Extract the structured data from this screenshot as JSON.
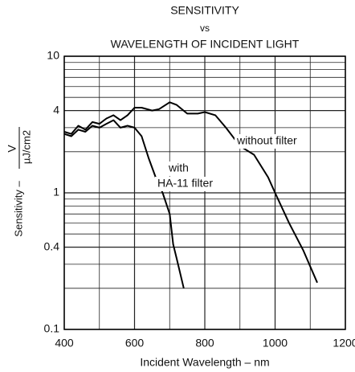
{
  "chart_data": {
    "type": "line",
    "title": [
      "SENSITIVITY",
      "vs",
      "WAVELENGTH OF INCIDENT LIGHT"
    ],
    "xlabel": "Incident Wavelength – nm",
    "ylabel": {
      "text": "Sensitivity –",
      "numerator": "V",
      "denominator": "µJ/cm2"
    },
    "log_y": true,
    "grid": true,
    "xlim": [
      400,
      1200
    ],
    "xticks": [
      400,
      600,
      800,
      1000,
      1200
    ],
    "xminor": [
      500,
      700,
      900,
      1100
    ],
    "ylim": [
      0.1,
      10
    ],
    "yticks": [
      0.1,
      0.4,
      1,
      4,
      10
    ],
    "yminor": [
      0.2,
      0.3,
      0.5,
      0.6,
      0.7,
      0.8,
      0.9,
      2,
      3,
      5,
      6,
      7,
      8,
      9
    ],
    "series": [
      {
        "name": "without filter",
        "color": "#000000",
        "x": [
          400,
          420,
          440,
          460,
          480,
          500,
          520,
          540,
          560,
          580,
          600,
          620,
          650,
          670,
          700,
          720,
          750,
          780,
          800,
          830,
          860,
          900,
          940,
          980,
          1000,
          1040,
          1080,
          1120
        ],
        "values": [
          2.8,
          2.7,
          3.1,
          2.9,
          3.3,
          3.2,
          3.5,
          3.7,
          3.4,
          3.7,
          4.2,
          4.2,
          4.0,
          4.1,
          4.6,
          4.4,
          3.8,
          3.8,
          3.9,
          3.7,
          3.0,
          2.2,
          1.9,
          1.3,
          1.0,
          0.6,
          0.38,
          0.22
        ]
      },
      {
        "name": "with HA-11 filter",
        "color": "#000000",
        "x": [
          400,
          420,
          440,
          460,
          480,
          500,
          520,
          540,
          560,
          580,
          600,
          620,
          640,
          660,
          680,
          700,
          710,
          720,
          740
        ],
        "values": [
          2.7,
          2.6,
          2.9,
          2.8,
          3.1,
          3.0,
          3.2,
          3.4,
          3.0,
          3.1,
          3.0,
          2.6,
          1.8,
          1.3,
          1.0,
          0.7,
          0.42,
          0.33,
          0.2
        ]
      }
    ],
    "annotations": [
      "without filter",
      "with",
      "HA-11 filter"
    ]
  }
}
